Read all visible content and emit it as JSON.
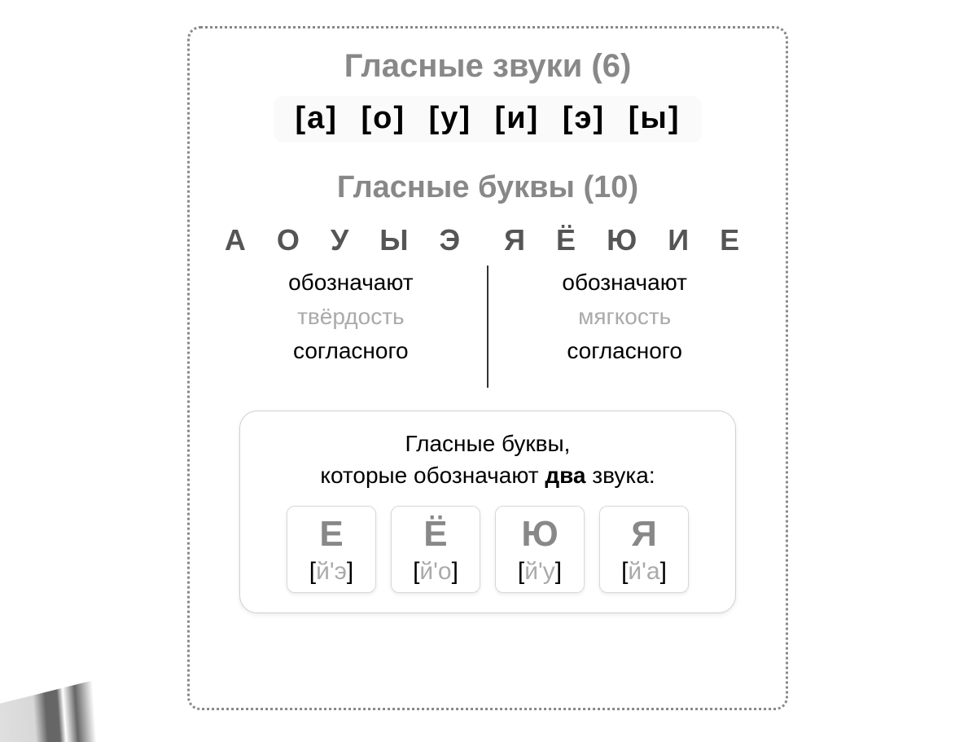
{
  "type": "infographic",
  "background_color": "#ffffff",
  "frame": {
    "border_style": "dotted",
    "border_color": "#888888",
    "border_width": 3,
    "border_radius": 16
  },
  "sounds_section": {
    "title": "Гласные звуки (6)",
    "title_color": "#888888",
    "title_fontsize": 40,
    "items": [
      "[а]",
      "[о]",
      "[у]",
      "[и]",
      "[э]",
      "[ы]"
    ],
    "item_color": "#000000",
    "item_fontsize": 38,
    "row_bg": "#fafafa"
  },
  "letters_section": {
    "title": "Гласные буквы (10)",
    "title_color": "#888888",
    "title_fontsize": 38,
    "left_group": "А О У Ы Э",
    "right_group": "Я Ё Ю И Е",
    "group_color": "#555555",
    "group_fontsize": 36,
    "left_col": {
      "line1": "обозначают",
      "line2": "твёрдость",
      "line3": "согласного"
    },
    "right_col": {
      "line1": "обозначают",
      "line2": "мягкость",
      "line3": "согласного"
    },
    "line1_color": "#000000",
    "line2_color": "#aaaaaa",
    "line3_color": "#000000",
    "col_fontsize": 28,
    "divider_color": "#333333"
  },
  "bottom_card": {
    "border_color": "#d0d0d0",
    "border_radius": 22,
    "title_line1": "Гласные буквы,",
    "title_line2_pre": "которые обозначают ",
    "title_line2_bold": "два",
    "title_line2_post": " звука:",
    "title_fontsize": 28,
    "title_color": "#000000",
    "cards": [
      {
        "letter": "Е",
        "trans_inner": "й'э"
      },
      {
        "letter": "Ё",
        "trans_inner": "й'о"
      },
      {
        "letter": "Ю",
        "trans_inner": "й'у"
      },
      {
        "letter": "Я",
        "trans_inner": "й'а"
      }
    ],
    "card_border_color": "#d8d8d8",
    "card_letter_color": "#888888",
    "card_letter_fontsize": 44,
    "trans_bracket_color": "#000000",
    "trans_inner_color": "#aaaaaa",
    "trans_fontsize": 30
  }
}
